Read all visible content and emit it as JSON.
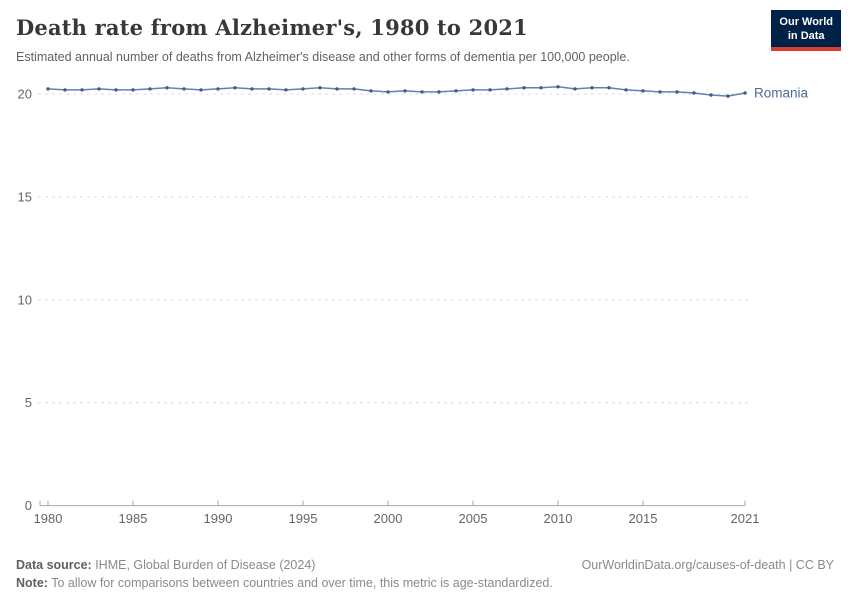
{
  "header": {
    "title": "Death rate from Alzheimer's, 1980 to 2021",
    "subtitle": "Estimated annual number of deaths from Alzheimer's disease and other forms of dementia per 100,000 people.",
    "logo": {
      "line1": "Our World",
      "line2": "in Data"
    }
  },
  "chart_data": {
    "type": "line",
    "title": "Death rate from Alzheimer's, 1980 to 2021",
    "xlabel": "",
    "ylabel": "",
    "x": [
      1980,
      1981,
      1982,
      1983,
      1984,
      1985,
      1986,
      1987,
      1988,
      1989,
      1990,
      1991,
      1992,
      1993,
      1994,
      1995,
      1996,
      1997,
      1998,
      1999,
      2000,
      2001,
      2002,
      2003,
      2004,
      2005,
      2006,
      2007,
      2008,
      2009,
      2010,
      2011,
      2012,
      2013,
      2014,
      2015,
      2016,
      2017,
      2018,
      2019,
      2020,
      2021
    ],
    "series": [
      {
        "name": "Romania",
        "color": "#4C6A9C",
        "values": [
          20.25,
          20.2,
          20.2,
          20.25,
          20.2,
          20.2,
          20.25,
          20.3,
          20.25,
          20.2,
          20.25,
          20.3,
          20.25,
          20.25,
          20.2,
          20.25,
          20.3,
          20.25,
          20.25,
          20.15,
          20.1,
          20.15,
          20.1,
          20.1,
          20.15,
          20.2,
          20.2,
          20.25,
          20.3,
          20.3,
          20.35,
          20.25,
          20.3,
          20.3,
          20.2,
          20.15,
          20.1,
          20.1,
          20.05,
          19.95,
          19.9,
          20.05
        ]
      }
    ],
    "ylim": [
      0,
      20
    ],
    "yticks": [
      0,
      5,
      10,
      15,
      20
    ],
    "xticks": [
      1980,
      1985,
      1990,
      1995,
      2000,
      2005,
      2010,
      2015,
      2021
    ],
    "grid": "horizontal-dashed",
    "legend_position": "end-of-line-label"
  },
  "footer": {
    "datasource_label": "Data source:",
    "datasource_value": " IHME, Global Burden of Disease (2024)",
    "credit": "OurWorldinData.org/causes-of-death | CC BY",
    "note_label": "Note:",
    "note_value": " To allow for comparisons between countries and over time, this metric is age-standardized."
  },
  "colors": {
    "series_line": "#6480AC",
    "series_dot": "#3D5C8F",
    "series_label": "#4C6A9C",
    "grid_line": "#dcdcdc",
    "axis_line": "#a8a8a8",
    "axis_text": "#666666",
    "logo_bg": "#002147",
    "logo_accent": "#dc3d33"
  }
}
